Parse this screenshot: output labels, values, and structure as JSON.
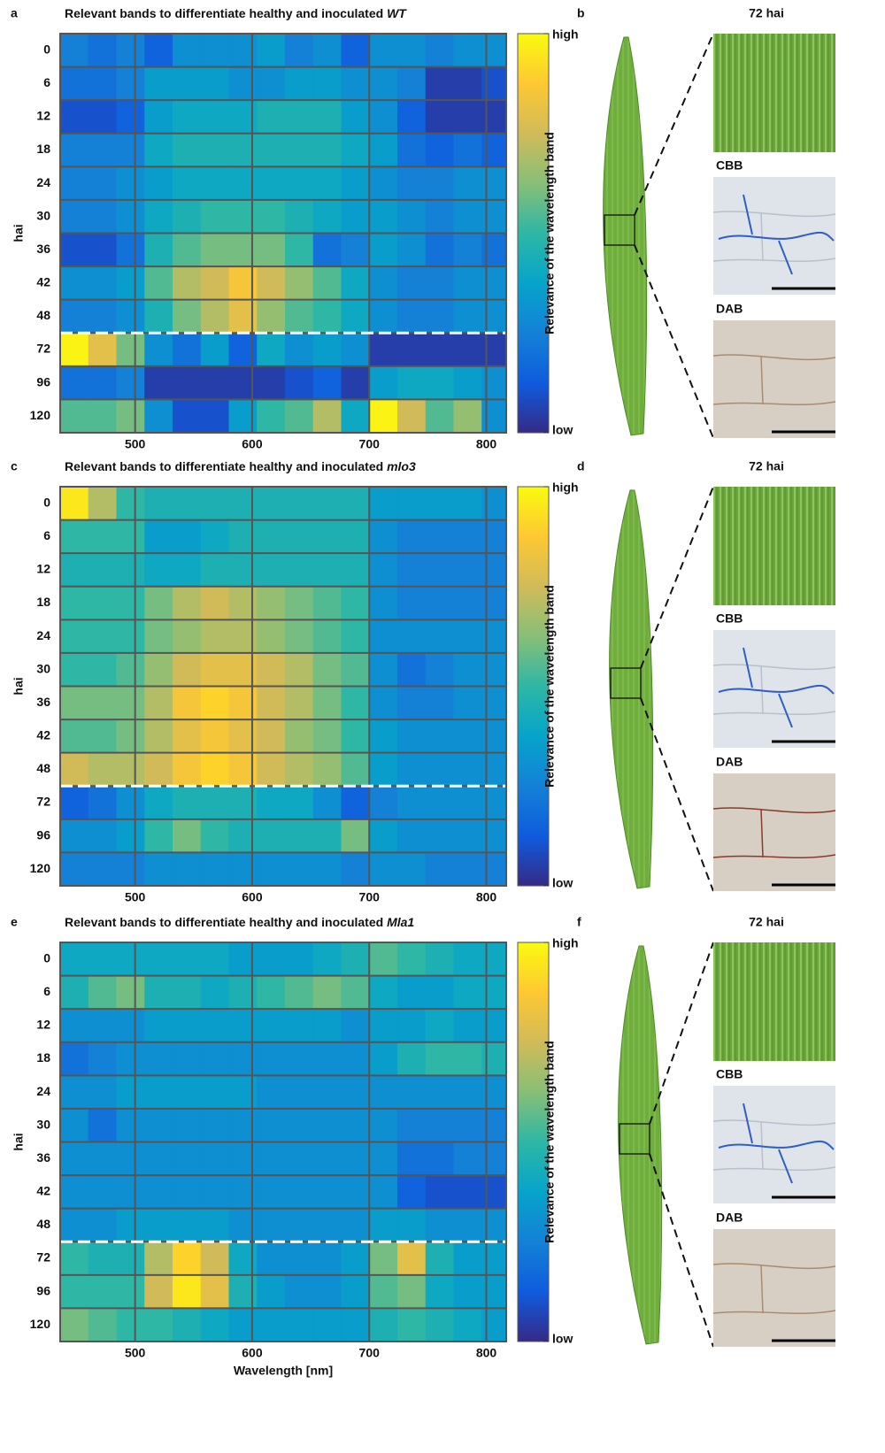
{
  "chart_data": [
    {
      "type": "heatmap",
      "panel": "a",
      "title": "Relevant bands to differentiate healthy and inoculated",
      "genotype": "WT",
      "ylabel": "hai",
      "colorbar_label": "Relevance of the wavelength band",
      "categories": [
        "0",
        "6",
        "12",
        "18",
        "24",
        "30",
        "36",
        "42",
        "48",
        "72",
        "96",
        "120"
      ],
      "separator_after": "48",
      "x": [
        448,
        472,
        496,
        520,
        544,
        568,
        592,
        616,
        640,
        664,
        688,
        712,
        736,
        760,
        784,
        808
      ],
      "xlim": [
        436,
        817
      ],
      "xticks": [
        500,
        600,
        700,
        800
      ],
      "clim": [
        0,
        1
      ],
      "cticks": [
        {
          "value": 1,
          "label": "high"
        },
        {
          "value": 0,
          "label": "low"
        }
      ],
      "colormap": [
        "#352a87",
        "#0f5cdd",
        "#1481d6",
        "#06a4ca",
        "#2eb7a4",
        "#87bf77",
        "#d1bb59",
        "#fec832",
        "#f9fb0e"
      ],
      "z": [
        [
          0.25,
          0.2,
          0.25,
          0.15,
          0.3,
          0.3,
          0.3,
          0.35,
          0.25,
          0.3,
          0.15,
          0.3,
          0.3,
          0.25,
          0.3,
          0.3
        ],
        [
          0.2,
          0.2,
          0.25,
          0.35,
          0.35,
          0.35,
          0.3,
          0.3,
          0.35,
          0.35,
          0.3,
          0.3,
          0.25,
          0.05,
          0.05,
          0.1
        ],
        [
          0.1,
          0.1,
          0.15,
          0.35,
          0.4,
          0.4,
          0.4,
          0.45,
          0.45,
          0.45,
          0.35,
          0.3,
          0.15,
          0.05,
          0.05,
          0.05
        ],
        [
          0.25,
          0.25,
          0.25,
          0.4,
          0.45,
          0.45,
          0.45,
          0.45,
          0.45,
          0.45,
          0.4,
          0.35,
          0.2,
          0.15,
          0.2,
          0.15
        ],
        [
          0.25,
          0.25,
          0.3,
          0.35,
          0.4,
          0.4,
          0.4,
          0.4,
          0.4,
          0.4,
          0.35,
          0.3,
          0.25,
          0.25,
          0.3,
          0.3
        ],
        [
          0.25,
          0.25,
          0.3,
          0.4,
          0.45,
          0.5,
          0.5,
          0.5,
          0.45,
          0.4,
          0.35,
          0.35,
          0.3,
          0.25,
          0.3,
          0.3
        ],
        [
          0.1,
          0.1,
          0.2,
          0.45,
          0.55,
          0.6,
          0.6,
          0.6,
          0.5,
          0.2,
          0.25,
          0.35,
          0.3,
          0.2,
          0.25,
          0.2
        ],
        [
          0.3,
          0.3,
          0.35,
          0.55,
          0.7,
          0.75,
          0.85,
          0.75,
          0.65,
          0.55,
          0.4,
          0.3,
          0.25,
          0.25,
          0.3,
          0.3
        ],
        [
          0.25,
          0.25,
          0.3,
          0.45,
          0.6,
          0.7,
          0.8,
          0.65,
          0.55,
          0.5,
          0.4,
          0.3,
          0.25,
          0.25,
          0.3,
          0.3
        ],
        [
          0.98,
          0.8,
          0.6,
          0.3,
          0.2,
          0.35,
          0.15,
          0.4,
          0.3,
          0.35,
          0.3,
          0.05,
          0.05,
          0.05,
          0.05,
          0.05
        ],
        [
          0.2,
          0.2,
          0.25,
          0.05,
          0.05,
          0.05,
          0.05,
          0.05,
          0.1,
          0.15,
          0.05,
          0.35,
          0.4,
          0.4,
          0.35,
          0.3
        ],
        [
          0.55,
          0.55,
          0.6,
          0.3,
          0.1,
          0.1,
          0.35,
          0.5,
          0.55,
          0.7,
          0.4,
          0.98,
          0.75,
          0.55,
          0.65,
          0.3
        ]
      ]
    },
    {
      "type": "heatmap",
      "panel": "c",
      "title": "Relevant bands to differentiate healthy and inoculated",
      "genotype": "mlo3",
      "ylabel": "hai",
      "colorbar_label": "Relevance of the wavelength band",
      "categories": [
        "0",
        "6",
        "12",
        "18",
        "24",
        "30",
        "36",
        "42",
        "48",
        "72",
        "96",
        "120"
      ],
      "separator_after": "48",
      "x": [
        448,
        472,
        496,
        520,
        544,
        568,
        592,
        616,
        640,
        664,
        688,
        712,
        736,
        760,
        784,
        808
      ],
      "xlim": [
        436,
        817
      ],
      "xticks": [
        500,
        600,
        700,
        800
      ],
      "clim": [
        0,
        1
      ],
      "cticks": [
        {
          "value": 1,
          "label": "high"
        },
        {
          "value": 0,
          "label": "low"
        }
      ],
      "colormap": [
        "#352a87",
        "#0f5cdd",
        "#1481d6",
        "#06a4ca",
        "#2eb7a4",
        "#87bf77",
        "#d1bb59",
        "#fec832",
        "#f9fb0e"
      ],
      "z": [
        [
          0.95,
          0.7,
          0.5,
          0.45,
          0.45,
          0.45,
          0.45,
          0.45,
          0.45,
          0.45,
          0.45,
          0.35,
          0.35,
          0.35,
          0.35,
          0.3
        ],
        [
          0.5,
          0.5,
          0.5,
          0.35,
          0.35,
          0.4,
          0.45,
          0.45,
          0.45,
          0.45,
          0.45,
          0.3,
          0.25,
          0.25,
          0.25,
          0.25
        ],
        [
          0.45,
          0.45,
          0.45,
          0.4,
          0.4,
          0.45,
          0.45,
          0.45,
          0.45,
          0.45,
          0.45,
          0.3,
          0.25,
          0.25,
          0.25,
          0.25
        ],
        [
          0.5,
          0.5,
          0.5,
          0.6,
          0.7,
          0.75,
          0.7,
          0.65,
          0.6,
          0.55,
          0.5,
          0.3,
          0.25,
          0.25,
          0.25,
          0.25
        ],
        [
          0.5,
          0.5,
          0.5,
          0.6,
          0.65,
          0.7,
          0.7,
          0.65,
          0.6,
          0.55,
          0.5,
          0.3,
          0.3,
          0.3,
          0.3,
          0.3
        ],
        [
          0.5,
          0.5,
          0.55,
          0.65,
          0.75,
          0.8,
          0.8,
          0.75,
          0.7,
          0.6,
          0.55,
          0.3,
          0.2,
          0.25,
          0.3,
          0.3
        ],
        [
          0.6,
          0.6,
          0.6,
          0.7,
          0.85,
          0.9,
          0.85,
          0.75,
          0.7,
          0.6,
          0.5,
          0.3,
          0.25,
          0.25,
          0.3,
          0.3
        ],
        [
          0.55,
          0.55,
          0.6,
          0.7,
          0.8,
          0.85,
          0.8,
          0.75,
          0.65,
          0.6,
          0.5,
          0.35,
          0.3,
          0.3,
          0.3,
          0.3
        ],
        [
          0.75,
          0.7,
          0.7,
          0.75,
          0.85,
          0.9,
          0.85,
          0.75,
          0.7,
          0.65,
          0.55,
          0.35,
          0.3,
          0.3,
          0.3,
          0.3
        ],
        [
          0.15,
          0.2,
          0.3,
          0.4,
          0.45,
          0.45,
          0.45,
          0.4,
          0.4,
          0.3,
          0.15,
          0.25,
          0.3,
          0.3,
          0.3,
          0.3
        ],
        [
          0.3,
          0.3,
          0.35,
          0.5,
          0.6,
          0.5,
          0.45,
          0.45,
          0.45,
          0.45,
          0.6,
          0.35,
          0.3,
          0.3,
          0.3,
          0.3
        ],
        [
          0.25,
          0.25,
          0.25,
          0.3,
          0.3,
          0.3,
          0.3,
          0.3,
          0.3,
          0.3,
          0.25,
          0.3,
          0.3,
          0.25,
          0.25,
          0.25
        ]
      ]
    },
    {
      "type": "heatmap",
      "panel": "e",
      "title": "Relevant bands to differentiate healthy and inoculated",
      "genotype": "Mla1",
      "ylabel": "hai",
      "xlabel": "Wavelength [nm]",
      "colorbar_label": "Relevance of the wavelength band",
      "categories": [
        "0",
        "6",
        "12",
        "18",
        "24",
        "30",
        "36",
        "42",
        "48",
        "72",
        "96",
        "120"
      ],
      "separator_after": "48",
      "x": [
        448,
        472,
        496,
        520,
        544,
        568,
        592,
        616,
        640,
        664,
        688,
        712,
        736,
        760,
        784,
        808
      ],
      "xlim": [
        436,
        817
      ],
      "xticks": [
        500,
        600,
        700,
        800
      ],
      "clim": [
        0,
        1
      ],
      "cticks": [
        {
          "value": 1,
          "label": "high"
        },
        {
          "value": 0,
          "label": "low"
        }
      ],
      "colormap": [
        "#352a87",
        "#0f5cdd",
        "#1481d6",
        "#06a4ca",
        "#2eb7a4",
        "#87bf77",
        "#d1bb59",
        "#fec832",
        "#f9fb0e"
      ],
      "z": [
        [
          0.4,
          0.4,
          0.4,
          0.4,
          0.4,
          0.4,
          0.35,
          0.35,
          0.35,
          0.4,
          0.45,
          0.55,
          0.5,
          0.45,
          0.4,
          0.4
        ],
        [
          0.45,
          0.55,
          0.6,
          0.45,
          0.45,
          0.4,
          0.45,
          0.5,
          0.55,
          0.6,
          0.55,
          0.4,
          0.35,
          0.35,
          0.4,
          0.4
        ],
        [
          0.3,
          0.3,
          0.3,
          0.35,
          0.35,
          0.35,
          0.35,
          0.35,
          0.35,
          0.35,
          0.3,
          0.35,
          0.35,
          0.4,
          0.35,
          0.35
        ],
        [
          0.2,
          0.25,
          0.3,
          0.3,
          0.3,
          0.3,
          0.3,
          0.3,
          0.3,
          0.3,
          0.3,
          0.35,
          0.45,
          0.5,
          0.5,
          0.45
        ],
        [
          0.3,
          0.3,
          0.35,
          0.35,
          0.35,
          0.35,
          0.35,
          0.3,
          0.3,
          0.3,
          0.3,
          0.3,
          0.3,
          0.3,
          0.3,
          0.3
        ],
        [
          0.3,
          0.2,
          0.3,
          0.3,
          0.3,
          0.3,
          0.3,
          0.3,
          0.3,
          0.3,
          0.3,
          0.3,
          0.25,
          0.25,
          0.25,
          0.25
        ],
        [
          0.3,
          0.3,
          0.3,
          0.3,
          0.3,
          0.3,
          0.3,
          0.3,
          0.3,
          0.3,
          0.3,
          0.3,
          0.2,
          0.2,
          0.25,
          0.25
        ],
        [
          0.3,
          0.3,
          0.3,
          0.3,
          0.3,
          0.3,
          0.3,
          0.3,
          0.3,
          0.3,
          0.3,
          0.3,
          0.15,
          0.1,
          0.1,
          0.1
        ],
        [
          0.3,
          0.3,
          0.35,
          0.35,
          0.35,
          0.35,
          0.3,
          0.3,
          0.3,
          0.3,
          0.3,
          0.35,
          0.35,
          0.3,
          0.3,
          0.3
        ],
        [
          0.5,
          0.45,
          0.45,
          0.7,
          0.9,
          0.75,
          0.4,
          0.3,
          0.3,
          0.3,
          0.35,
          0.6,
          0.8,
          0.45,
          0.35,
          0.35
        ],
        [
          0.5,
          0.5,
          0.5,
          0.75,
          0.95,
          0.8,
          0.45,
          0.35,
          0.3,
          0.3,
          0.35,
          0.55,
          0.6,
          0.4,
          0.35,
          0.35
        ],
        [
          0.6,
          0.55,
          0.5,
          0.5,
          0.45,
          0.4,
          0.35,
          0.35,
          0.35,
          0.35,
          0.35,
          0.45,
          0.5,
          0.45,
          0.4,
          0.35
        ]
      ]
    }
  ],
  "image_panels": [
    {
      "label": "b",
      "time": "72 hai",
      "stains": [
        "CBB",
        "DAB"
      ]
    },
    {
      "label": "d",
      "time": "72 hai",
      "stains": [
        "CBB",
        "DAB"
      ]
    },
    {
      "label": "f",
      "time": "72 hai",
      "stains": [
        "CBB",
        "DAB"
      ]
    }
  ]
}
